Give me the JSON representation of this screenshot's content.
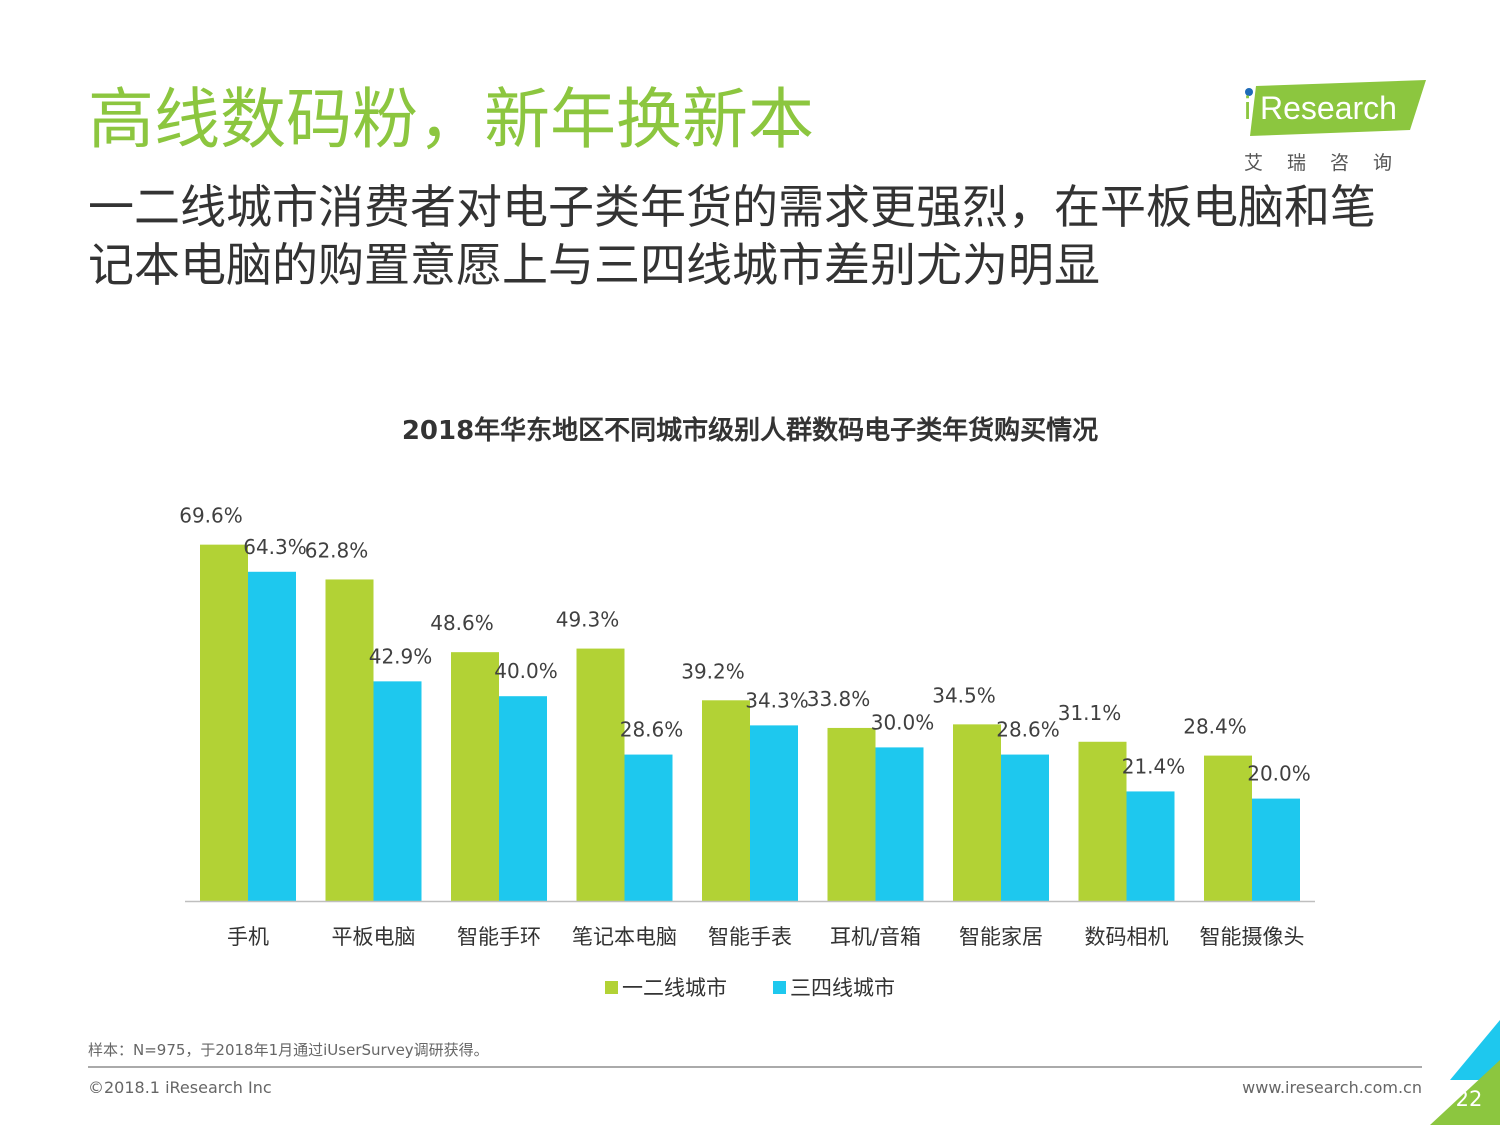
{
  "header": {
    "title": "高线数码粉，新年换新本",
    "subtitle": "一二线城市消费者对电子类年货的需求更强烈，在平板电脑和笔记本电脑的购置意愿上与三四线城市差别尤为明显"
  },
  "logo": {
    "i": "i",
    "name": "Research",
    "cn": "艾瑞咨询"
  },
  "colors": {
    "brand_green": "#8cc63f",
    "series1": "#b2d235",
    "series2": "#1ec8ee"
  },
  "chart_data": {
    "type": "bar",
    "title": "2018年华东地区不同城市级别人群数码电子类年货购买情况",
    "xlabel": "",
    "ylabel": "",
    "ylim": [
      0,
      75
    ],
    "grid": false,
    "legend_position": "bottom",
    "categories": [
      "手机",
      "平板电脑",
      "智能手环",
      "笔记本电脑",
      "智能手表",
      "耳机/音箱",
      "智能家居",
      "数码相机",
      "智能摄像头"
    ],
    "series": [
      {
        "name": "一二线城市",
        "color": "#b2d235",
        "values": [
          69.6,
          62.8,
          48.6,
          49.3,
          39.2,
          33.8,
          34.5,
          31.1,
          28.4
        ]
      },
      {
        "name": "三四线城市",
        "color": "#1ec8ee",
        "values": [
          64.3,
          42.9,
          40.0,
          28.6,
          34.3,
          30.0,
          28.6,
          21.4,
          20.0
        ]
      }
    ]
  },
  "footer": {
    "note": "样本：N=975，于2018年1月通过iUserSurvey调研获得。",
    "copyright": "©2018.1 iResearch Inc",
    "website": "www.iresearch.com.cn",
    "page_number": "22"
  }
}
